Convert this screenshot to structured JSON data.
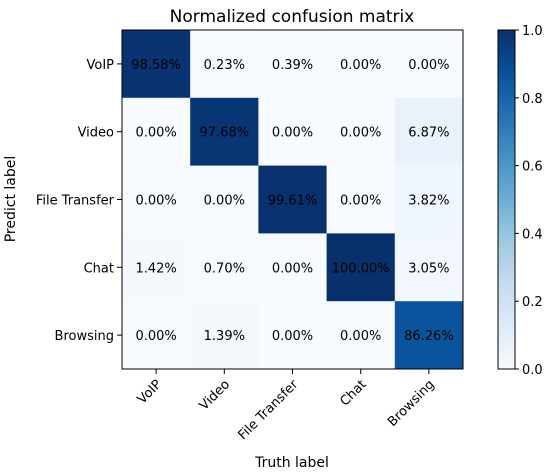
{
  "chart_data": {
    "type": "heatmap",
    "title": "Normalized confusion matrix",
    "xlabel": "Truth label",
    "ylabel": "Predict label",
    "x_categories": [
      "VoIP",
      "Video",
      "File Transfer",
      "Chat",
      "Browsing"
    ],
    "y_categories": [
      "VoIP",
      "Video",
      "File Transfer",
      "Chat",
      "Browsing"
    ],
    "values": [
      [
        98.58,
        0.23,
        0.39,
        0.0,
        0.0
      ],
      [
        0.0,
        97.68,
        0.0,
        0.0,
        6.87
      ],
      [
        0.0,
        0.0,
        99.61,
        0.0,
        3.82
      ],
      [
        1.42,
        0.7,
        0.0,
        100.0,
        3.05
      ],
      [
        0.0,
        1.39,
        0.0,
        0.0,
        86.26
      ]
    ],
    "cell_labels": [
      [
        "98.58%",
        "0.23%",
        "0.39%",
        "0.00%",
        "0.00%"
      ],
      [
        "0.00%",
        "97.68%",
        "0.00%",
        "0.00%",
        "6.87%"
      ],
      [
        "0.00%",
        "0.00%",
        "99.61%",
        "0.00%",
        "3.82%"
      ],
      [
        "1.42%",
        "0.70%",
        "0.00%",
        "100.00%",
        "3.05%"
      ],
      [
        "0.00%",
        "1.39%",
        "0.00%",
        "0.00%",
        "86.26%"
      ]
    ],
    "colorbar": {
      "colormap": "Blues",
      "range": [
        0.0,
        1.0
      ],
      "ticks": [
        "0.0",
        "0.2",
        "0.4",
        "0.6",
        "0.8",
        "1.0"
      ]
    },
    "grid": false,
    "legend": "none"
  }
}
